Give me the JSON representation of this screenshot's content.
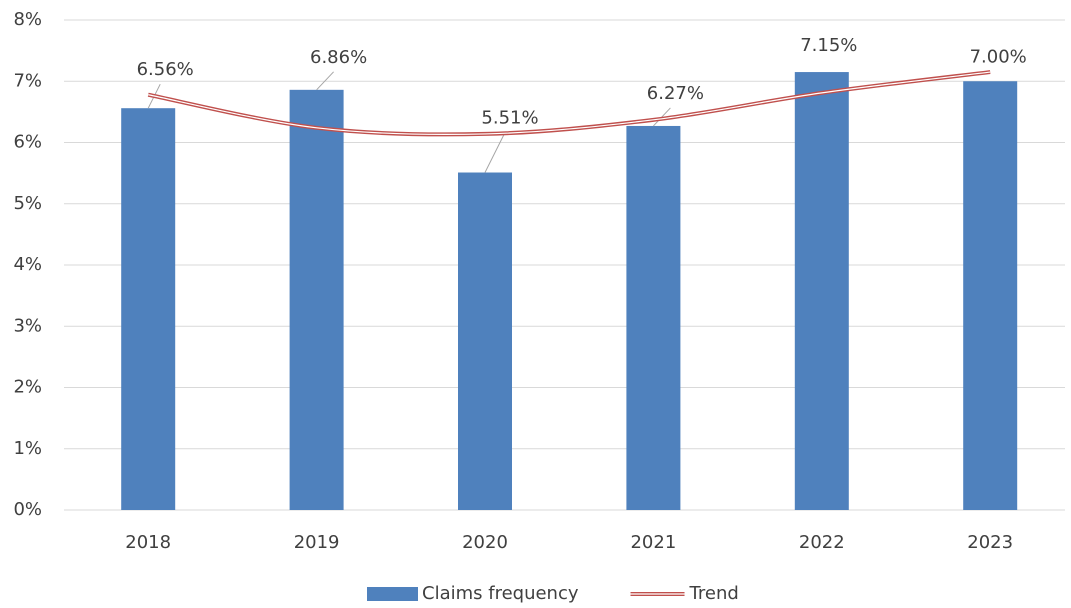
{
  "chart_data": {
    "type": "bar",
    "categories": [
      "2018",
      "2019",
      "2020",
      "2021",
      "2022",
      "2023"
    ],
    "series": [
      {
        "name": "Claims frequency",
        "type": "bar",
        "color": "#4f81bd",
        "values": [
          6.56,
          6.86,
          5.51,
          6.27,
          7.15,
          7.0
        ],
        "value_labels": [
          "6.56%",
          "6.86%",
          "5.51%",
          "6.27%",
          "7.15%",
          "7.00%"
        ]
      },
      {
        "name": "Trend",
        "type": "line",
        "color": "#c0504d",
        "values": [
          6.78,
          6.24,
          6.14,
          6.37,
          6.81,
          7.15
        ]
      }
    ],
    "ylim": [
      0,
      8
    ],
    "yticks": [
      {
        "value": 0,
        "label": "0%"
      },
      {
        "value": 1,
        "label": "1%"
      },
      {
        "value": 2,
        "label": "2%"
      },
      {
        "value": 3,
        "label": "3%"
      },
      {
        "value": 4,
        "label": "4%"
      },
      {
        "value": 5,
        "label": "5%"
      },
      {
        "value": 6,
        "label": "6%"
      },
      {
        "value": 7,
        "label": "7%"
      },
      {
        "value": 8,
        "label": "8%"
      }
    ],
    "grid": true,
    "legend": "bottom"
  }
}
